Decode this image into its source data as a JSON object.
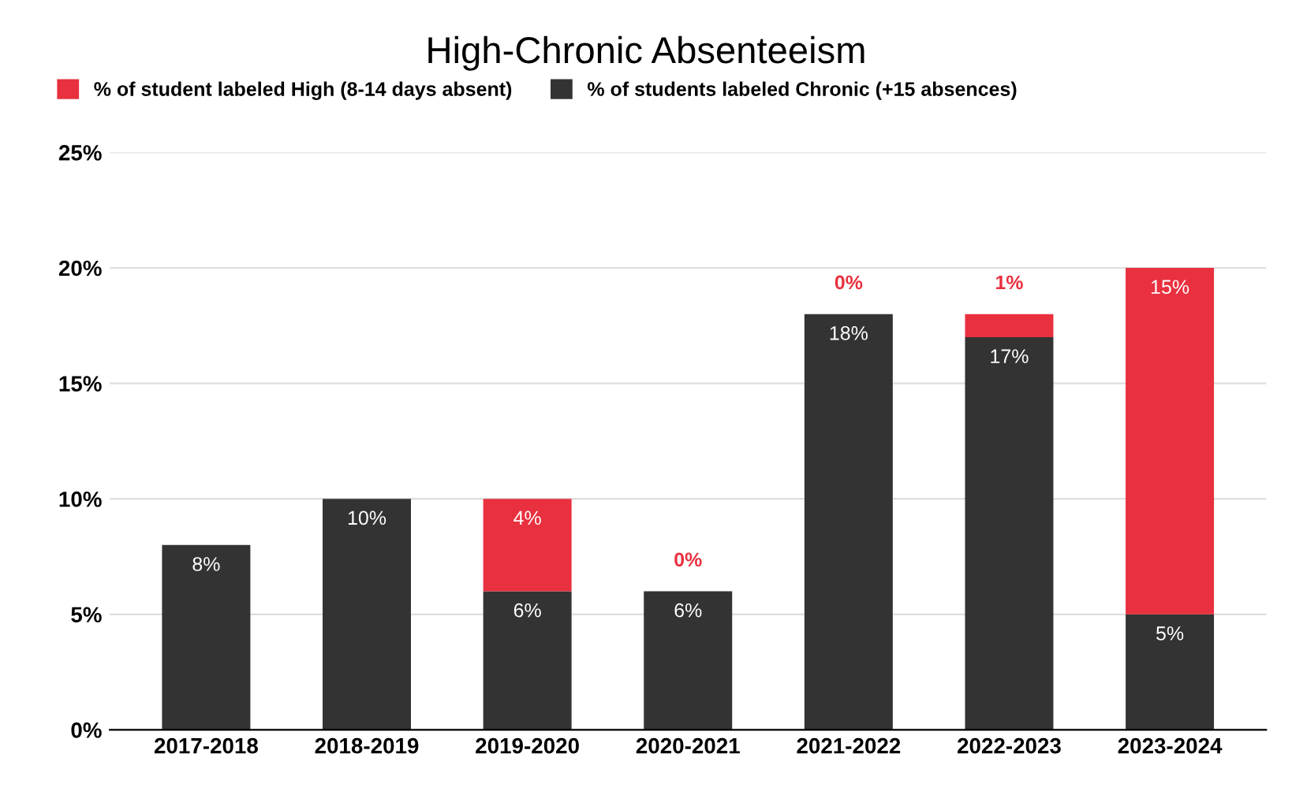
{
  "chart_data": {
    "type": "bar",
    "title": "High-Chronic Absenteeism",
    "stacked": true,
    "categories": [
      "2017-2018",
      "2018-2019",
      "2019-2020",
      "2020-2021",
      "2021-2022",
      "2022-2023",
      "2023-2024"
    ],
    "series": [
      {
        "name": "% of students labeled Chronic (+15 absences)",
        "color": "#333333",
        "values": [
          8,
          10,
          6,
          6,
          18,
          17,
          5
        ],
        "value_labels": [
          "8%",
          "10%",
          "6%",
          "6%",
          "18%",
          "17%",
          "5%"
        ]
      },
      {
        "name": "% of student labeled High (8-14 days absent)",
        "color": "#e8303f",
        "values": [
          null,
          null,
          4,
          0,
          0,
          1,
          15
        ],
        "value_labels": [
          null,
          null,
          "4%",
          "0%",
          "0%",
          "1%",
          "15%"
        ]
      }
    ],
    "ylim": [
      0,
      25
    ],
    "yticks": [
      {
        "value": 0,
        "label": "0%"
      },
      {
        "value": 5,
        "label": "5%"
      },
      {
        "value": 10,
        "label": "10%"
      },
      {
        "value": 15,
        "label": "15%"
      },
      {
        "value": 20,
        "label": "20%"
      },
      {
        "value": 25,
        "label": "25%"
      }
    ],
    "grid": "y",
    "legend": "top left"
  }
}
